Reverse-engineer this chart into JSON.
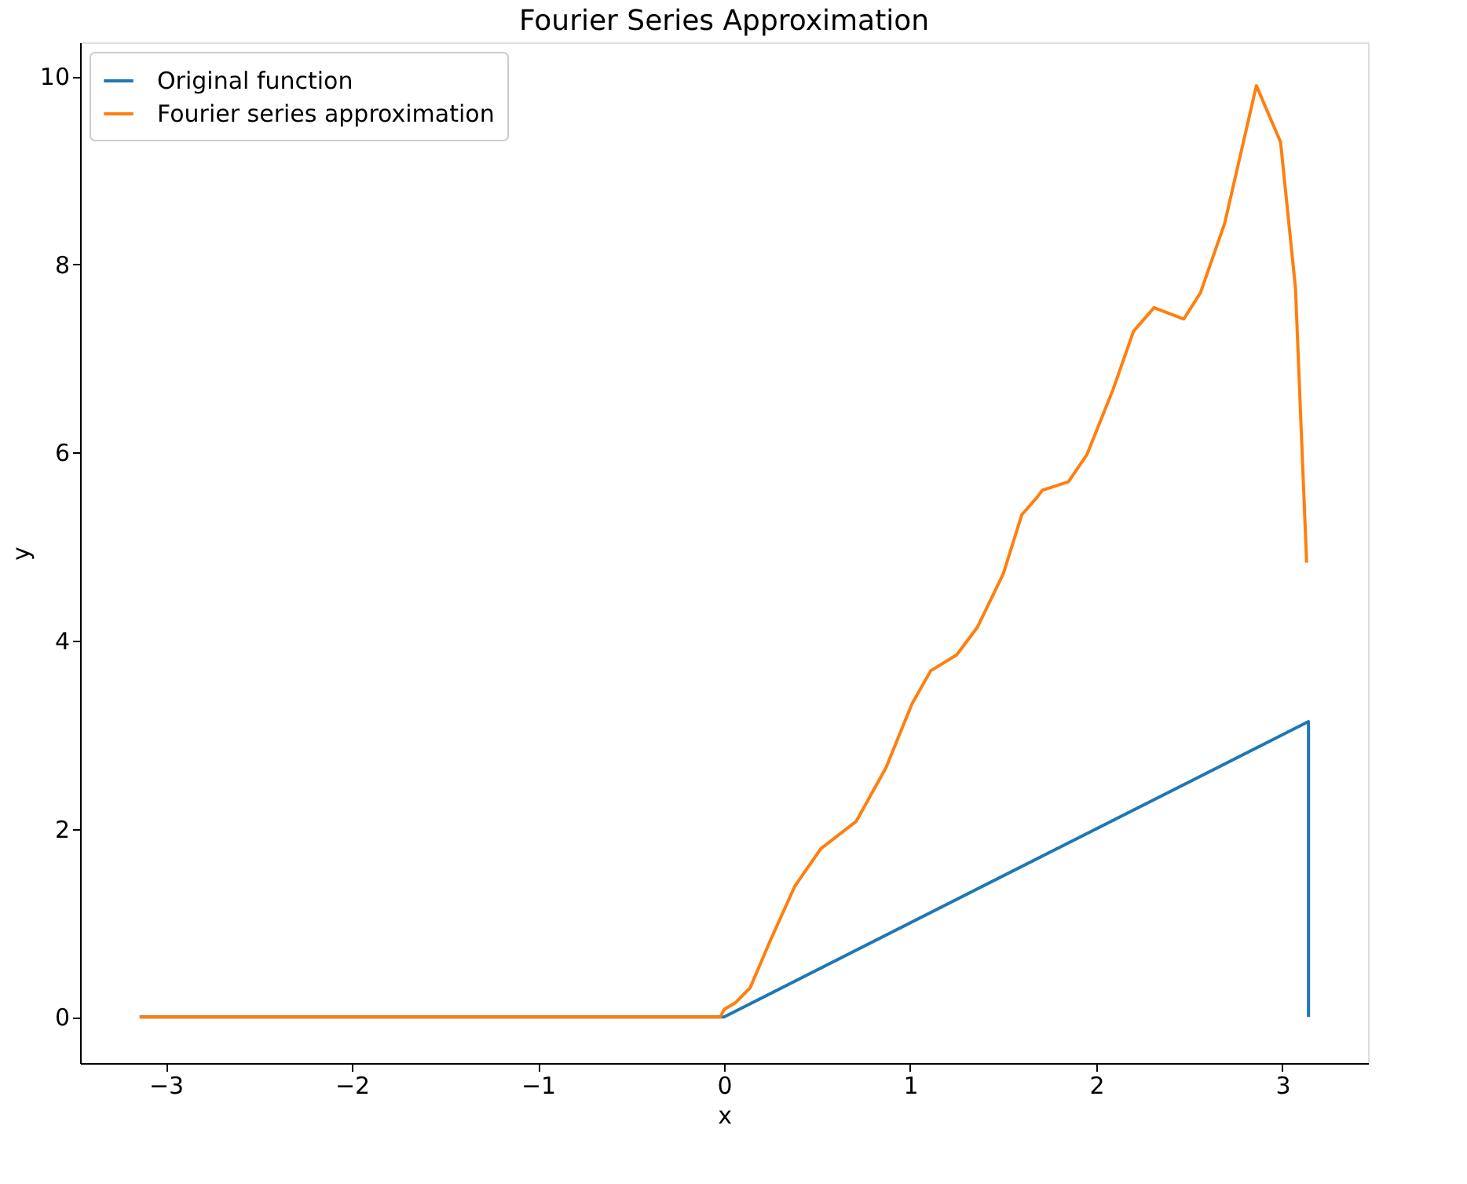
{
  "chart_data": {
    "type": "line",
    "title": "Fourier Series Approximation",
    "xlabel": "x",
    "ylabel": "y",
    "xlim": [
      -3.46,
      3.46
    ],
    "ylim": [
      -0.49,
      10.36
    ],
    "xticks": [
      {
        "value": -3,
        "label": "−3"
      },
      {
        "value": -2,
        "label": "−2"
      },
      {
        "value": -1,
        "label": "−1"
      },
      0,
      1,
      2,
      3
    ],
    "yticks": [
      0,
      2,
      4,
      6,
      8,
      10
    ],
    "grid": false,
    "legend": "top left",
    "line_style": "solid",
    "marker": "none",
    "series": [
      {
        "name": "Original function",
        "color": "#1f77b4",
        "x": [
          -3.14,
          0,
          3.14,
          3.14
        ],
        "values": [
          0,
          0,
          3.14,
          0
        ]
      },
      {
        "name": "Fourier series approximation",
        "color": "#ff7f0e",
        "x": [
          -3.14,
          -0.02,
          0.0,
          0.06,
          0.14,
          0.25,
          0.38,
          0.52,
          0.71,
          0.87,
          1.01,
          1.11,
          1.25,
          1.36,
          1.5,
          1.6,
          1.68,
          1.71,
          1.85,
          1.95,
          2.09,
          2.2,
          2.31,
          2.47,
          2.56,
          2.69,
          2.86,
          2.99,
          3.07,
          3.13
        ],
        "values": [
          0,
          0,
          0.08,
          0.15,
          0.31,
          0.82,
          1.39,
          1.79,
          2.08,
          2.65,
          3.33,
          3.68,
          3.85,
          4.14,
          4.71,
          5.34,
          5.52,
          5.6,
          5.69,
          5.98,
          6.67,
          7.29,
          7.54,
          7.42,
          7.7,
          8.44,
          9.9,
          9.3,
          7.75,
          4.83
        ]
      }
    ]
  }
}
